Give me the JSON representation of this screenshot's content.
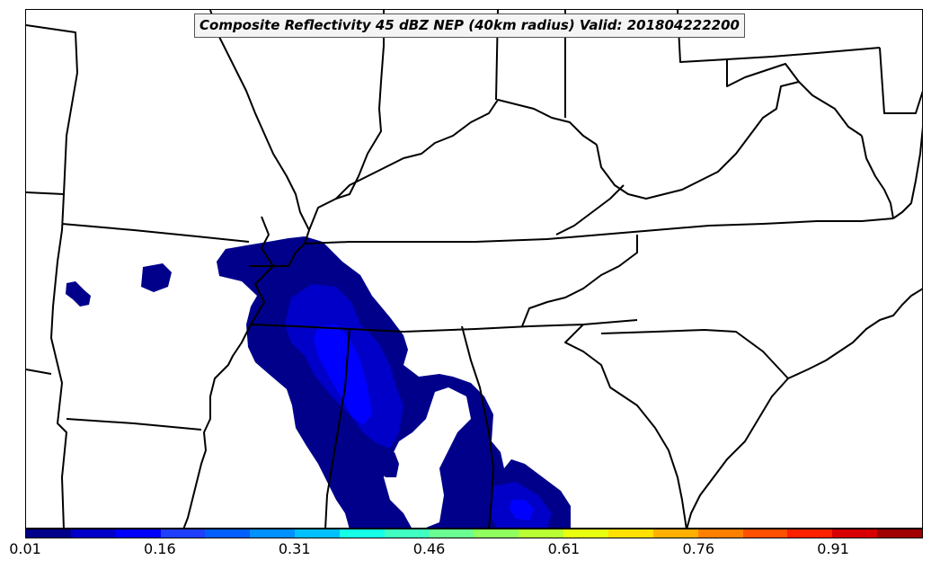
{
  "title": "Composite Reflectivity 45 dBZ NEP (40km radius) Valid: 201804222200",
  "colorbar": {
    "colors": [
      "#00008b",
      "#0000c8",
      "#0000ff",
      "#1f3fff",
      "#005fff",
      "#0090ff",
      "#00c0ff",
      "#14ffe6",
      "#40ffc0",
      "#6aff90",
      "#90ff60",
      "#b8ff34",
      "#e8ff10",
      "#ffe000",
      "#ffb000",
      "#ff8000",
      "#ff5000",
      "#ff2000",
      "#d80000",
      "#a00000"
    ],
    "tick_labels": [
      "0.01",
      "0.16",
      "0.31",
      "0.46",
      "0.61",
      "0.76",
      "0.91"
    ],
    "min": 0.01,
    "max": 1.0
  },
  "probability_colors": {
    "low": "#00008b",
    "mid": "#0000c8",
    "high": "#0000ff"
  }
}
